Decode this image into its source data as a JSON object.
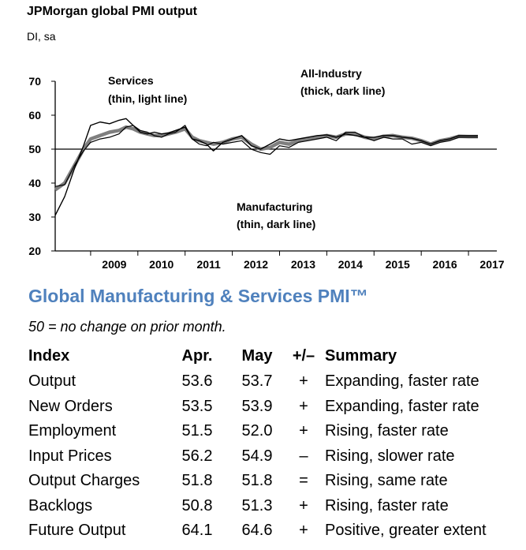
{
  "header": {
    "title": "JPMorgan global PMI output",
    "subtitle": "DI, sa"
  },
  "chart_data": {
    "type": "line",
    "title": "JPMorgan global PMI output",
    "subtitle": "DI, sa",
    "ylim": [
      20,
      70
    ],
    "yticks": [
      20,
      30,
      40,
      50,
      60,
      70
    ],
    "xlim": [
      2008.25,
      2017.6
    ],
    "xticks": [
      "2009",
      "2010",
      "2011",
      "2012",
      "2013",
      "2014",
      "2015",
      "2016",
      "2017"
    ],
    "reference_line": 50,
    "grid": false,
    "annotations": [
      {
        "label": "Services",
        "note": "(thin, light line)"
      },
      {
        "label": "All-Industry",
        "note": "(thick, dark line)"
      },
      {
        "label": "Manufacturing",
        "note": "(thin, dark line)"
      }
    ],
    "series": [
      {
        "name": "Services",
        "color": "#000000",
        "x": [
          2008.25,
          2008.45,
          2008.65,
          2008.85,
          2009.0,
          2009.2,
          2009.4,
          2009.6,
          2009.75,
          2009.9,
          2010.05,
          2010.2,
          2010.35,
          2010.5,
          2010.65,
          2010.8,
          2011.0,
          2011.15,
          2011.3,
          2011.45,
          2011.6,
          2011.8,
          2012.0,
          2012.2,
          2012.4,
          2012.6,
          2012.8,
          2013.0,
          2013.2,
          2013.4,
          2013.6,
          2013.8,
          2014.0,
          2014.2,
          2014.4,
          2014.6,
          2014.8,
          2015.0,
          2015.2,
          2015.4,
          2015.6,
          2015.8,
          2016.0,
          2016.2,
          2016.4,
          2016.6,
          2016.8,
          2017.0,
          2017.2
        ],
        "values": [
          30.5,
          36,
          44,
          51,
          57,
          58,
          57.5,
          58.5,
          59,
          57,
          55,
          54.5,
          55,
          54.5,
          54.8,
          55.5,
          56.5,
          53,
          52.5,
          51.5,
          49.5,
          52,
          53,
          54,
          51,
          50,
          51.5,
          53,
          52.5,
          53,
          53.5,
          54,
          54.2,
          53.5,
          54.5,
          54,
          53.5,
          53.5,
          54,
          54,
          53.5,
          53.2,
          52.5,
          51.5,
          52.5,
          53,
          54,
          54,
          54
        ]
      },
      {
        "name": "All-Industry",
        "color": "#7f7f7f",
        "x": [
          2008.25,
          2008.45,
          2008.65,
          2008.85,
          2009.0,
          2009.2,
          2009.4,
          2009.6,
          2009.75,
          2009.9,
          2010.05,
          2010.2,
          2010.35,
          2010.5,
          2010.65,
          2010.8,
          2011.0,
          2011.15,
          2011.3,
          2011.45,
          2011.6,
          2011.8,
          2012.0,
          2012.2,
          2012.4,
          2012.6,
          2012.8,
          2013.0,
          2013.2,
          2013.4,
          2013.6,
          2013.8,
          2014.0,
          2014.2,
          2014.4,
          2014.6,
          2014.8,
          2015.0,
          2015.2,
          2015.4,
          2015.6,
          2015.8,
          2016.0,
          2016.2,
          2016.4,
          2016.6,
          2016.8,
          2017.0,
          2017.2
        ],
        "values": [
          38,
          40,
          45,
          50,
          53,
          54,
          55,
          55.5,
          56.5,
          56,
          55,
          54.5,
          54,
          54,
          54.5,
          55,
          56,
          53.5,
          52.5,
          52,
          51.5,
          52,
          53,
          53.5,
          51.5,
          50,
          50.5,
          52,
          51.5,
          52.5,
          53,
          53.5,
          54,
          53.5,
          54.5,
          54.5,
          53.5,
          53,
          53.8,
          54,
          53.5,
          53.2,
          52.5,
          51.5,
          52.5,
          53,
          53.8,
          53.7,
          53.7
        ]
      },
      {
        "name": "Manufacturing",
        "color": "#000000",
        "x": [
          2008.25,
          2008.45,
          2008.65,
          2008.85,
          2009.0,
          2009.2,
          2009.4,
          2009.6,
          2009.75,
          2009.9,
          2010.05,
          2010.2,
          2010.35,
          2010.5,
          2010.65,
          2010.8,
          2011.0,
          2011.15,
          2011.3,
          2011.45,
          2011.6,
          2011.8,
          2012.0,
          2012.2,
          2012.4,
          2012.6,
          2012.8,
          2013.0,
          2013.2,
          2013.4,
          2013.6,
          2013.8,
          2014.0,
          2014.2,
          2014.4,
          2014.6,
          2014.8,
          2015.0,
          2015.2,
          2015.4,
          2015.6,
          2015.8,
          2016.0,
          2016.2,
          2016.4,
          2016.6,
          2016.8,
          2017.0,
          2017.2
        ],
        "values": [
          39,
          39.5,
          45,
          49.5,
          52,
          53,
          53.5,
          54.5,
          56.5,
          57,
          55.5,
          55,
          54,
          53.5,
          54.5,
          55,
          57,
          53,
          51.5,
          51,
          52,
          51.5,
          52,
          52.5,
          50,
          49,
          48.5,
          51,
          50.5,
          52,
          52.5,
          53,
          53.5,
          52.5,
          55,
          55,
          53.5,
          52.5,
          53.5,
          53,
          53,
          51.5,
          52,
          51,
          52,
          52.5,
          53.5,
          53.5,
          53.5
        ]
      }
    ]
  },
  "section": {
    "title": "Global Manufacturing & Services PMI™",
    "note": "50 = no change on prior month."
  },
  "table": {
    "headers": {
      "index": "Index",
      "apr": "Apr.",
      "may": "May",
      "change": "+/–",
      "summary": "Summary"
    },
    "rows": [
      {
        "index": "Output",
        "apr": "53.6",
        "may": "53.7",
        "change": "+",
        "summary": "Expanding, faster rate"
      },
      {
        "index": "New Orders",
        "apr": "53.5",
        "may": "53.9",
        "change": "+",
        "summary": "Expanding, faster rate"
      },
      {
        "index": "Employment",
        "apr": "51.5",
        "may": "52.0",
        "change": "+",
        "summary": "Rising, faster rate"
      },
      {
        "index": "Input Prices",
        "apr": "56.2",
        "may": "54.9",
        "change": "–",
        "summary": "Rising, slower rate"
      },
      {
        "index": "Output Charges",
        "apr": "51.8",
        "may": "51.8",
        "change": "=",
        "summary": "Rising, same rate"
      },
      {
        "index": "Backlogs",
        "apr": "50.8",
        "may": "51.3",
        "change": "+",
        "summary": "Rising, faster rate"
      },
      {
        "index": "Future Output",
        "apr": "64.1",
        "may": "64.6",
        "change": "+",
        "summary": "Positive, greater extent"
      }
    ]
  }
}
